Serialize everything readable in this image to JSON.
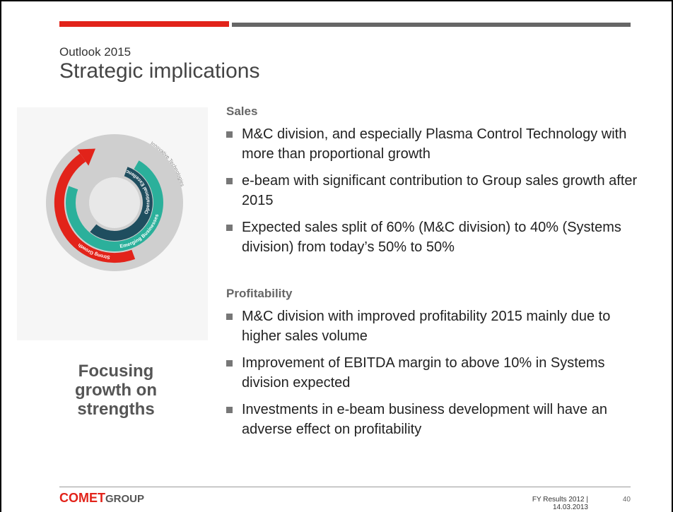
{
  "header": {
    "subtitle": "Outlook 2015",
    "title": "Strategic implications"
  },
  "graphic": {
    "labels": [
      "Operational Excellence",
      "Emerging Businesses",
      "Strong Growth",
      "Innovative Technologies"
    ],
    "caption": "Focusing growth on strengths"
  },
  "sections": [
    {
      "heading": "Sales",
      "bullets": [
        "M&C division, and especially Plasma Control Technology with more than proportional growth",
        "e-beam with significant contribution to Group sales growth after 2015",
        "Expected sales split of 60% (M&C division) to 40% (Systems division) from today’s 50% to 50%"
      ]
    },
    {
      "heading": "Profitability",
      "bullets": [
        "M&C division with improved profitability 2015 mainly due to higher sales volume",
        "Improvement of EBITDA margin to above 10% in Systems division expected",
        "Investments in e-beam business development will have an adverse effect on profitability"
      ]
    }
  ],
  "footer": {
    "logo": {
      "brand": "COMET",
      "suffix": "GROUP"
    },
    "info": "FY Results 2012 | 14.03.2013",
    "page": "40"
  }
}
